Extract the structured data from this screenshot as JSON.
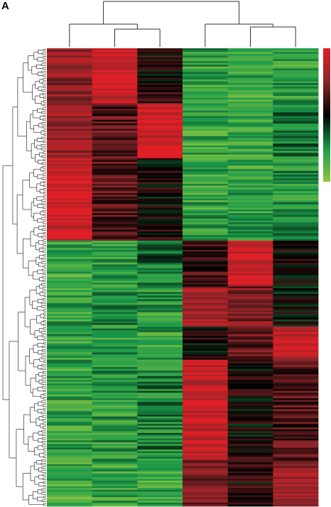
{
  "panel_label": "A",
  "chart_data": {
    "type": "heatmap",
    "title": "",
    "xlabel": "",
    "ylabel": "",
    "columns": 6,
    "column_dendrogram_order": [
      1,
      2,
      3,
      4,
      5,
      6
    ],
    "column_dendrogram_merges": [
      [
        2,
        3
      ],
      [
        1,
        "2-3"
      ],
      [
        5,
        6
      ],
      [
        4,
        "5-6"
      ],
      [
        "1-3",
        "4-6"
      ]
    ],
    "row_cluster_blocks": [
      {
        "rows": 30,
        "values": [
          0.55,
          0.9,
          0.1,
          -0.6,
          -0.65,
          -0.6
        ]
      },
      {
        "rows": 30,
        "values": [
          0.55,
          0.3,
          0.9,
          -0.65,
          -0.6,
          -0.4
        ]
      },
      {
        "rows": 45,
        "values": [
          0.92,
          0.3,
          0.05,
          -0.6,
          -0.6,
          -0.5
        ]
      },
      {
        "rows": 25,
        "values": [
          -0.65,
          -0.55,
          -0.35,
          0.2,
          0.9,
          0.05
        ]
      },
      {
        "rows": 22,
        "values": [
          -0.6,
          -0.5,
          -0.55,
          0.7,
          0.5,
          0.0
        ]
      },
      {
        "rows": 18,
        "values": [
          -0.6,
          -0.55,
          -0.6,
          0.05,
          0.35,
          0.8
        ]
      },
      {
        "rows": 55,
        "values": [
          -0.6,
          -0.55,
          -0.45,
          0.85,
          0.05,
          0.3
        ]
      },
      {
        "rows": 25,
        "values": [
          -0.7,
          -0.6,
          -0.65,
          0.5,
          0.1,
          0.6
        ]
      }
    ],
    "color_scale": {
      "min": -1,
      "max": 1,
      "stops": [
        {
          "v": -1,
          "color": "#8dc63f"
        },
        {
          "v": -0.5,
          "color": "#1b9a4a"
        },
        {
          "v": 0,
          "color": "#000000"
        },
        {
          "v": 0.5,
          "color": "#8b2529"
        },
        {
          "v": 1,
          "color": "#e01f26"
        }
      ]
    },
    "legend": "right"
  }
}
